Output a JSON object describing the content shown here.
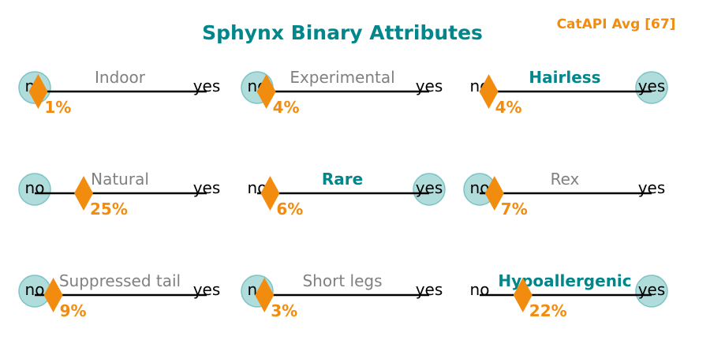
{
  "chart_data": {
    "type": "binary-attribute-sliders",
    "title": "Sphynx Binary Attributes",
    "badge": "CatAPI Avg [67]",
    "end_labels": {
      "left": "no",
      "right": "yes"
    },
    "colors": {
      "title": "#00868b",
      "badge": "#f28c0f",
      "marker": "#f28c0f",
      "percent": "#f28c0f",
      "highlight_label": "#00868b",
      "muted_label": "#808080",
      "circle_fill": "#b0dcdc",
      "circle_stroke": "#7cc4c4",
      "line": "#000000"
    },
    "attributes": [
      {
        "name": "Indoor",
        "value": 0,
        "percent_label": "1%",
        "avg_fraction": 0.01,
        "highlight": false
      },
      {
        "name": "Experimental",
        "value": 0,
        "percent_label": "4%",
        "avg_fraction": 0.04,
        "highlight": false
      },
      {
        "name": "Hairless",
        "value": 1,
        "percent_label": "4%",
        "avg_fraction": 0.04,
        "highlight": true
      },
      {
        "name": "Natural",
        "value": 0,
        "percent_label": "25%",
        "avg_fraction": 0.25,
        "highlight": false
      },
      {
        "name": "Rare",
        "value": 1,
        "percent_label": "6%",
        "avg_fraction": 0.06,
        "highlight": true
      },
      {
        "name": "Rex",
        "value": 0,
        "percent_label": "7%",
        "avg_fraction": 0.07,
        "highlight": false
      },
      {
        "name": "Suppressed tail",
        "value": 0,
        "percent_label": "9%",
        "avg_fraction": 0.09,
        "highlight": false
      },
      {
        "name": "Short legs",
        "value": 0,
        "percent_label": "3%",
        "avg_fraction": 0.03,
        "highlight": false
      },
      {
        "name": "Hypoallergenic",
        "value": 1,
        "percent_label": "22%",
        "avg_fraction": 0.22,
        "highlight": true
      }
    ]
  }
}
